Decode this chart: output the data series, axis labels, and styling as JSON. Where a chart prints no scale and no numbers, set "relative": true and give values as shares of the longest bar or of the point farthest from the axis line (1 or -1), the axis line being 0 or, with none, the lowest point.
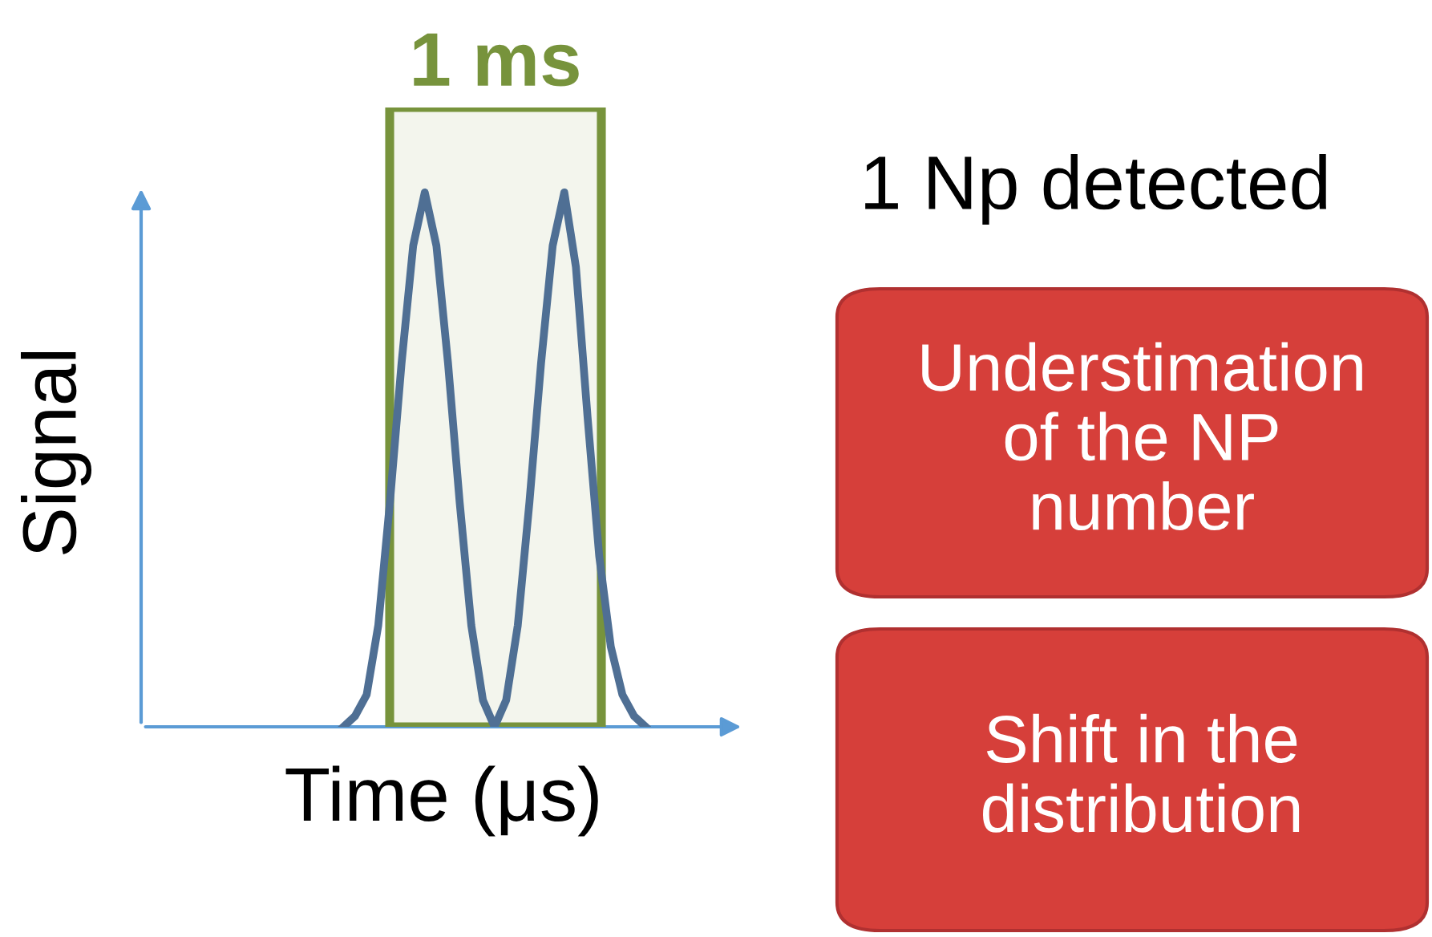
{
  "chart_data": {
    "type": "line",
    "relative": true,
    "xlabel": "Time (μs)",
    "ylabel": "Signal",
    "categories": [
      null,
      null,
      null,
      null,
      null,
      null,
      null,
      null,
      null,
      null,
      null,
      null,
      null,
      null,
      null,
      null,
      null,
      null,
      null,
      null,
      null,
      null,
      null,
      null,
      null,
      null,
      null,
      null,
      null,
      null,
      null,
      null,
      null,
      null,
      null,
      null,
      null,
      null,
      null,
      null,
      null,
      null,
      null,
      null,
      null,
      null,
      null,
      null,
      null,
      null,
      null,
      null
    ],
    "series": [
      {
        "color": "#4f6f94",
        "values": [
          null,
          null,
          null,
          null,
          null,
          null,
          null,
          null,
          null,
          null,
          null,
          null,
          null,
          null,
          null,
          null,
          null,
          0,
          0.02,
          0.06,
          0.19,
          0.42,
          0.68,
          0.9,
          1,
          0.9,
          0.68,
          0.42,
          0.19,
          0.05,
          0,
          0.05,
          0.19,
          0.42,
          0.68,
          0.9,
          1,
          0.86,
          0.58,
          0.32,
          0.15,
          0.06,
          0.02,
          0,
          null,
          null,
          null,
          null,
          null,
          null,
          null,
          null
        ]
      }
    ],
    "annotations": [
      "1 ms",
      "1 Np detected",
      "Understimation of the NP number",
      "Shift in the distribution"
    ],
    "grid": false,
    "legend": false,
    "marker": "none",
    "line_style": "solid"
  }
}
